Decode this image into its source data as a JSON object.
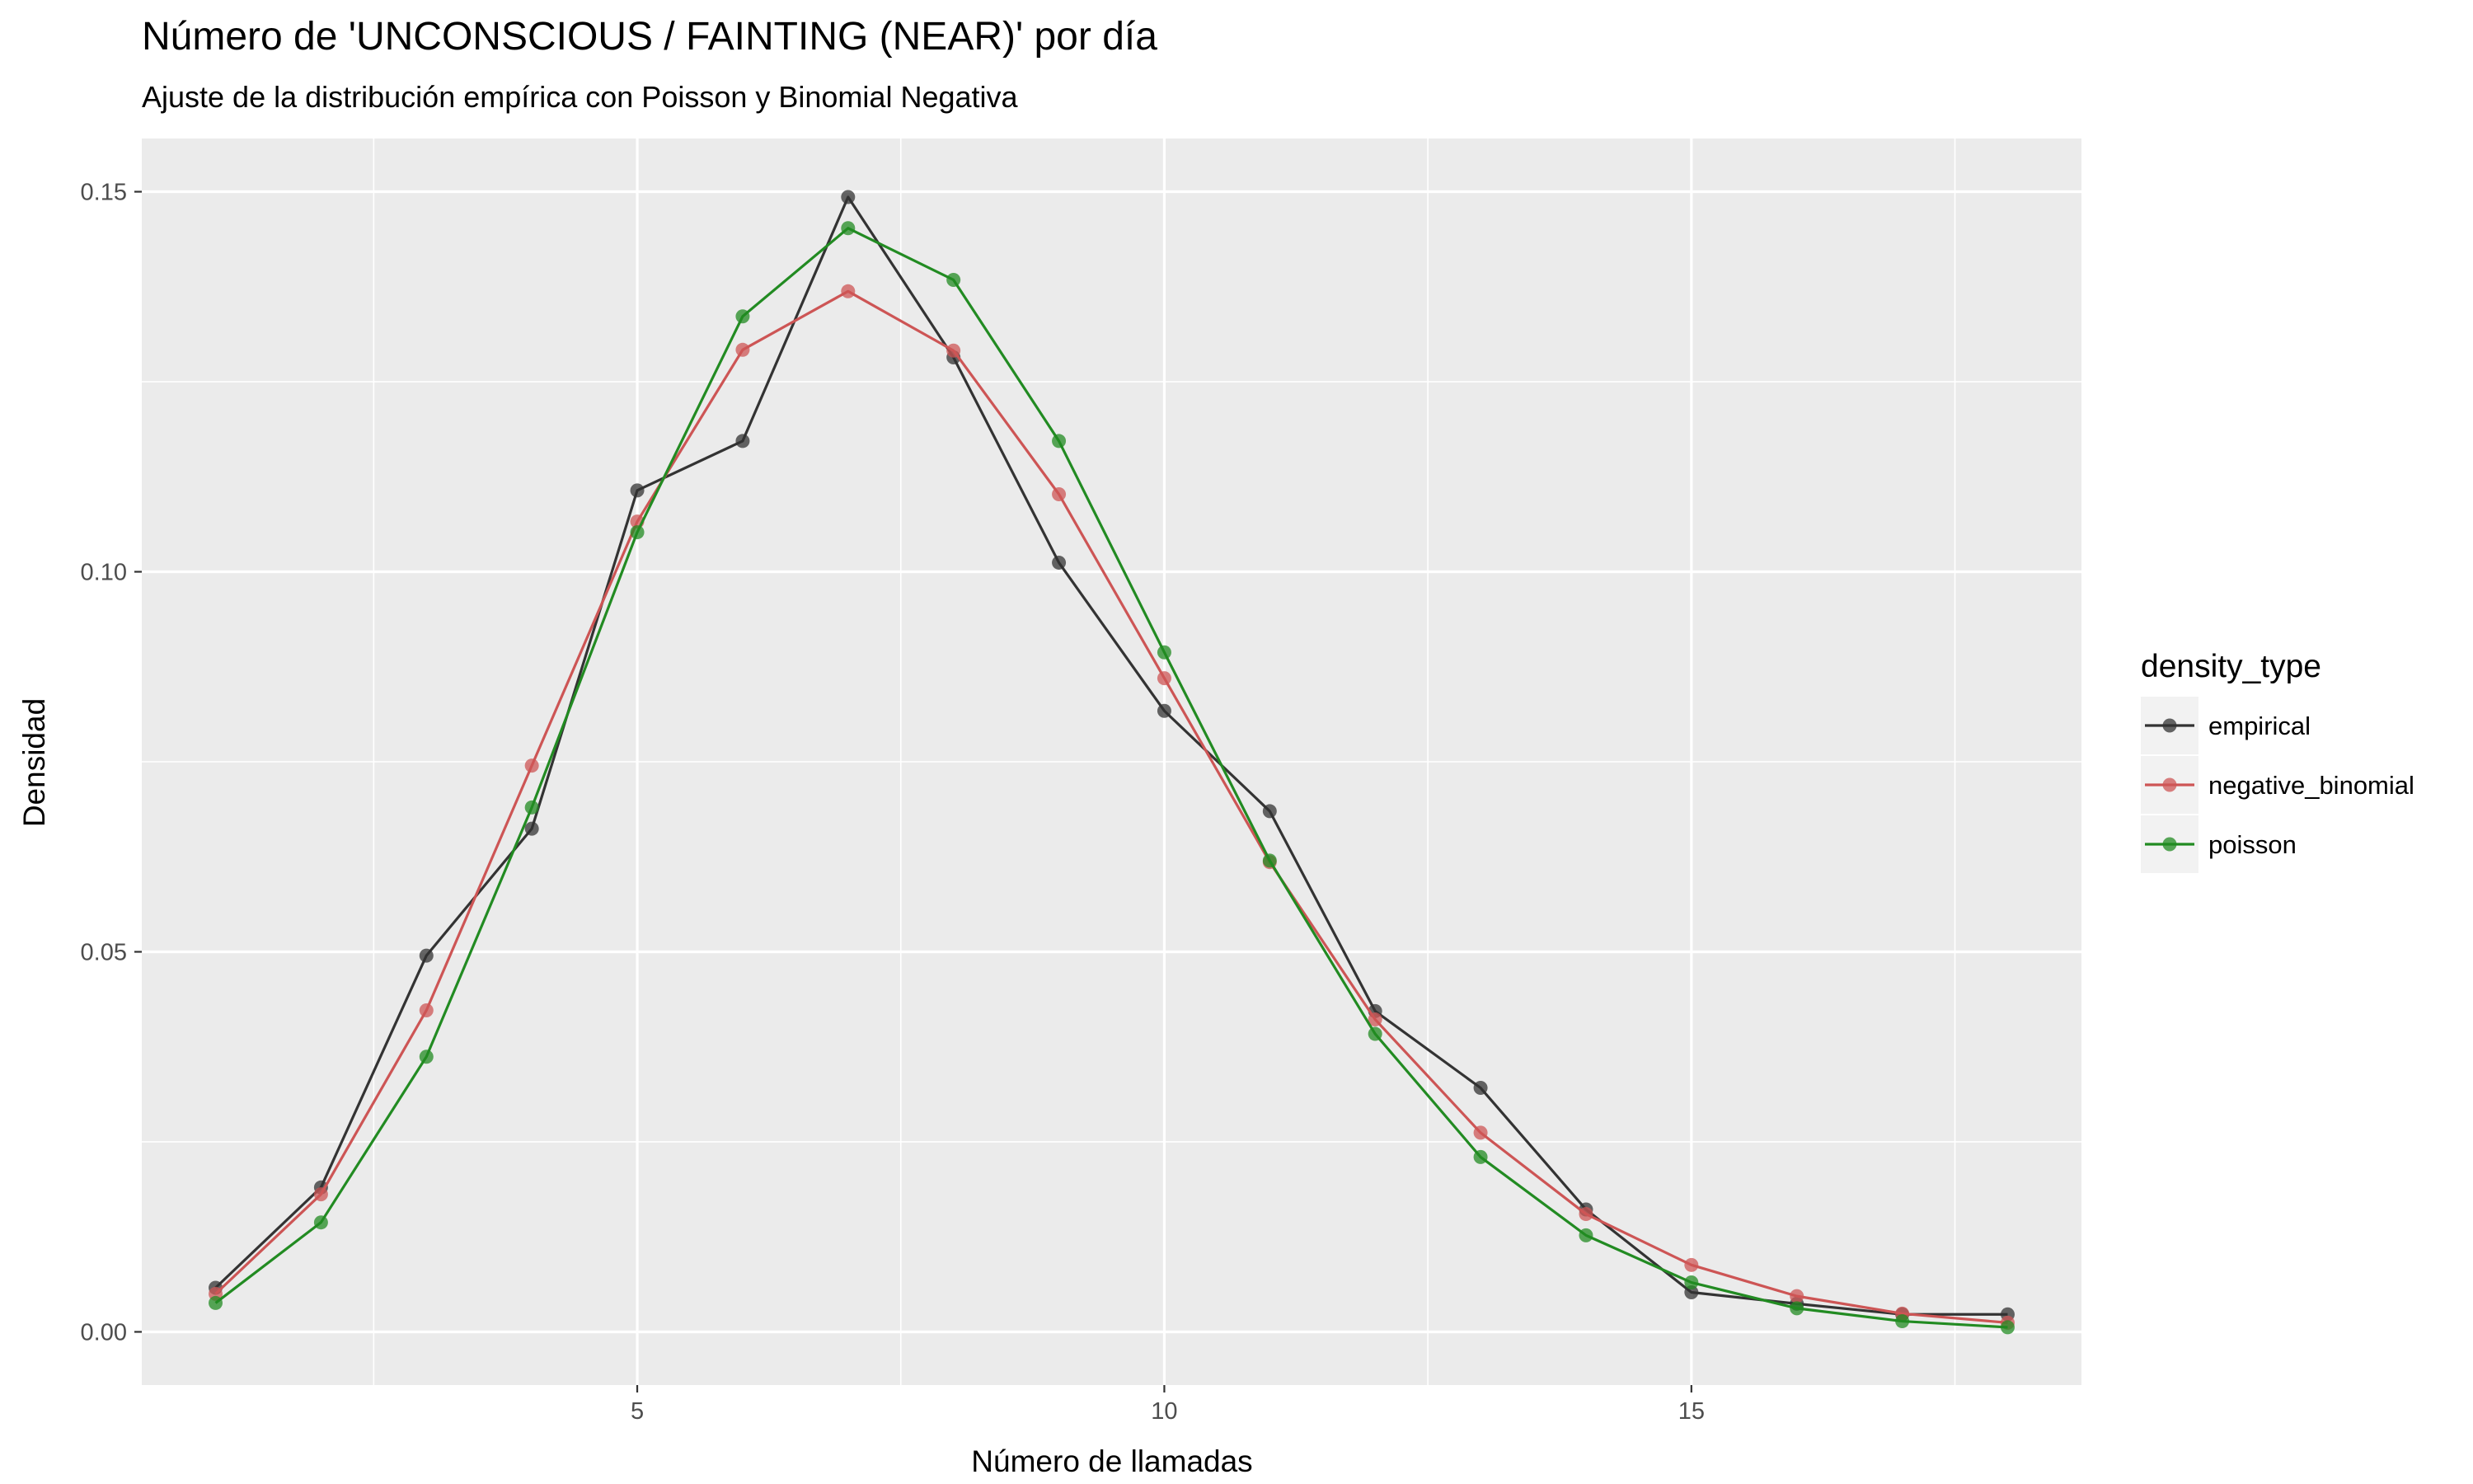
{
  "chart_data": {
    "type": "line",
    "title": "Número de 'UNCONSCIOUS / FAINTING (NEAR)' por día",
    "subtitle": "Ajuste de la distribución empírica con Poisson y Binomial Negativa",
    "xlabel": "Número de llamadas",
    "ylabel": "Densidad",
    "xlim": [
      0.3,
      18.7
    ],
    "ylim": [
      -0.007,
      0.157
    ],
    "x_ticks": [
      5,
      10,
      15
    ],
    "x_tick_labels": [
      "5",
      "10",
      "15"
    ],
    "y_ticks": [
      0,
      0.05,
      0.1,
      0.15
    ],
    "y_tick_labels": [
      "0.00",
      "0.05",
      "0.10",
      "0.15"
    ],
    "grid": true,
    "legend": {
      "title": "density_type",
      "position": "right"
    },
    "x": [
      1,
      2,
      3,
      4,
      5,
      6,
      7,
      8,
      9,
      10,
      11,
      12,
      13,
      14,
      15,
      16,
      17,
      18
    ],
    "series": [
      {
        "name": "empirical",
        "color": "#333333",
        "values": [
          0.0058,
          0.019,
          0.0495,
          0.0662,
          0.1107,
          0.1172,
          0.1493,
          0.1282,
          0.1012,
          0.0817,
          0.0685,
          0.0422,
          0.0321,
          0.0161,
          0.0052,
          0.0037,
          0.0023,
          0.0023
        ]
      },
      {
        "name": "negative_binomial",
        "color": "#cd5555",
        "values": [
          0.005,
          0.0181,
          0.0423,
          0.0745,
          0.1066,
          0.1292,
          0.1369,
          0.1291,
          0.1102,
          0.086,
          0.0618,
          0.0411,
          0.0262,
          0.0155,
          0.0088,
          0.0047,
          0.0024,
          0.0012
        ]
      },
      {
        "name": "poisson",
        "color": "#228b22",
        "values": [
          0.0038,
          0.0144,
          0.0362,
          0.069,
          0.1052,
          0.1336,
          0.1452,
          0.1384,
          0.1172,
          0.0894,
          0.062,
          0.0392,
          0.023,
          0.0127,
          0.0065,
          0.0031,
          0.0014,
          0.0006
        ]
      }
    ]
  }
}
